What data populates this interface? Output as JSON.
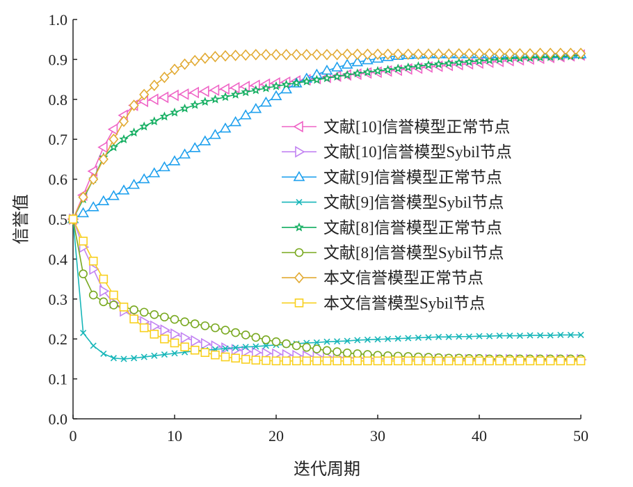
{
  "chart_data": {
    "type": "line",
    "title": "",
    "xlabel": "迭代周期",
    "ylabel": "信誉值",
    "xlim": [
      0,
      50
    ],
    "ylim": [
      0,
      1.0
    ],
    "xticks": [
      "0",
      "10",
      "20",
      "30",
      "40",
      "50"
    ],
    "yticks": [
      "0.0",
      "0.1",
      "0.2",
      "0.3",
      "0.4",
      "0.5",
      "0.6",
      "0.7",
      "0.8",
      "0.9",
      "1.0"
    ],
    "legend_position": "center-right",
    "grid": false,
    "series": [
      {
        "name": "文献[10]信誉模型正常节点",
        "color": "#ef64c6",
        "marker": "triangle-left",
        "values": [
          0.5,
          0.56,
          0.62,
          0.68,
          0.725,
          0.76,
          0.785,
          0.795,
          0.8,
          0.805,
          0.81,
          0.813,
          0.817,
          0.82,
          0.823,
          0.826,
          0.829,
          0.832,
          0.835,
          0.838,
          0.841,
          0.843,
          0.846,
          0.849,
          0.852,
          0.855,
          0.858,
          0.861,
          0.863,
          0.866,
          0.868,
          0.871,
          0.873,
          0.876,
          0.878,
          0.881,
          0.883,
          0.885,
          0.887,
          0.889,
          0.891,
          0.893,
          0.895,
          0.897,
          0.899,
          0.901,
          0.903,
          0.905,
          0.907,
          0.909,
          0.911
        ]
      },
      {
        "name": "文献[10]信誉模型Sybil节点",
        "color": "#c283f2",
        "marker": "triangle-right",
        "values": [
          0.5,
          0.43,
          0.375,
          0.32,
          0.29,
          0.27,
          0.255,
          0.243,
          0.232,
          0.222,
          0.212,
          0.203,
          0.195,
          0.188,
          0.182,
          0.177,
          0.173,
          0.169,
          0.166,
          0.164,
          0.162,
          0.16,
          0.158,
          0.157,
          0.156,
          0.155,
          0.154,
          0.153,
          0.152,
          0.151,
          0.15,
          0.15,
          0.15,
          0.149,
          0.149,
          0.149,
          0.149,
          0.148,
          0.148,
          0.148,
          0.148,
          0.148,
          0.148,
          0.148,
          0.148,
          0.148,
          0.148,
          0.148,
          0.148,
          0.148,
          0.148
        ]
      },
      {
        "name": "文献[9]信誉模型正常节点",
        "color": "#1ea0ee",
        "marker": "triangle-up",
        "values": [
          0.5,
          0.515,
          0.53,
          0.545,
          0.558,
          0.572,
          0.586,
          0.6,
          0.615,
          0.63,
          0.645,
          0.662,
          0.678,
          0.695,
          0.711,
          0.727,
          0.743,
          0.76,
          0.776,
          0.792,
          0.808,
          0.825,
          0.84,
          0.852,
          0.862,
          0.872,
          0.88,
          0.887,
          0.893,
          0.898,
          0.902,
          0.906,
          0.909,
          0.911,
          0.912,
          0.913,
          0.913,
          0.913,
          0.913,
          0.913,
          0.913,
          0.913,
          0.913,
          0.913,
          0.913,
          0.913,
          0.913,
          0.913,
          0.913,
          0.913,
          0.913
        ]
      },
      {
        "name": "文献[9]信誉模型Sybil节点",
        "color": "#17b6b9",
        "marker": "x",
        "values": [
          0.5,
          0.215,
          0.183,
          0.163,
          0.152,
          0.15,
          0.152,
          0.155,
          0.158,
          0.161,
          0.164,
          0.167,
          0.17,
          0.172,
          0.174,
          0.176,
          0.178,
          0.18,
          0.181,
          0.183,
          0.185,
          0.186,
          0.188,
          0.19,
          0.191,
          0.193,
          0.194,
          0.195,
          0.197,
          0.198,
          0.199,
          0.2,
          0.201,
          0.202,
          0.203,
          0.204,
          0.205,
          0.205,
          0.206,
          0.206,
          0.207,
          0.207,
          0.208,
          0.208,
          0.208,
          0.209,
          0.209,
          0.209,
          0.21,
          0.21,
          0.21
        ]
      },
      {
        "name": "文献[8]信誉模型正常节点",
        "color": "#11ad5f",
        "marker": "star",
        "values": [
          0.5,
          0.55,
          0.6,
          0.655,
          0.68,
          0.7,
          0.717,
          0.732,
          0.745,
          0.757,
          0.767,
          0.777,
          0.786,
          0.794,
          0.8,
          0.806,
          0.812,
          0.818,
          0.823,
          0.828,
          0.833,
          0.837,
          0.841,
          0.845,
          0.849,
          0.853,
          0.857,
          0.861,
          0.865,
          0.868,
          0.871,
          0.874,
          0.877,
          0.88,
          0.883,
          0.886,
          0.888,
          0.89,
          0.892,
          0.894,
          0.896,
          0.898,
          0.9,
          0.902,
          0.903,
          0.904,
          0.905,
          0.906,
          0.907,
          0.908,
          0.91
        ]
      },
      {
        "name": "文献[8]信誉模型Sybil节点",
        "color": "#78a81f",
        "marker": "circle",
        "values": [
          0.5,
          0.363,
          0.31,
          0.293,
          0.285,
          0.28,
          0.273,
          0.267,
          0.261,
          0.255,
          0.249,
          0.243,
          0.238,
          0.233,
          0.228,
          0.222,
          0.216,
          0.21,
          0.204,
          0.198,
          0.193,
          0.188,
          0.183,
          0.179,
          0.175,
          0.171,
          0.168,
          0.165,
          0.163,
          0.161,
          0.159,
          0.158,
          0.157,
          0.156,
          0.155,
          0.154,
          0.153,
          0.152,
          0.152,
          0.151,
          0.151,
          0.15,
          0.15,
          0.15,
          0.15,
          0.15,
          0.15,
          0.15,
          0.15,
          0.15,
          0.15
        ]
      },
      {
        "name": "本文信誉模型正常节点",
        "color": "#e2aa32",
        "marker": "diamond",
        "values": [
          0.5,
          0.555,
          0.6,
          0.65,
          0.7,
          0.745,
          0.785,
          0.812,
          0.835,
          0.855,
          0.875,
          0.888,
          0.897,
          0.903,
          0.907,
          0.909,
          0.91,
          0.911,
          0.912,
          0.912,
          0.912,
          0.912,
          0.912,
          0.912,
          0.912,
          0.912,
          0.912,
          0.913,
          0.913,
          0.913,
          0.913,
          0.913,
          0.913,
          0.913,
          0.913,
          0.913,
          0.913,
          0.913,
          0.914,
          0.914,
          0.914,
          0.914,
          0.914,
          0.914,
          0.914,
          0.914,
          0.915,
          0.915,
          0.915,
          0.915,
          0.915
        ]
      },
      {
        "name": "本文信誉模型Sybil节点",
        "color": "#f8d01e",
        "marker": "square",
        "values": [
          0.5,
          0.445,
          0.395,
          0.35,
          0.31,
          0.28,
          0.25,
          0.228,
          0.212,
          0.2,
          0.19,
          0.18,
          0.172,
          0.166,
          0.16,
          0.155,
          0.152,
          0.149,
          0.147,
          0.146,
          0.145,
          0.145,
          0.145,
          0.145,
          0.145,
          0.145,
          0.145,
          0.145,
          0.145,
          0.145,
          0.145,
          0.145,
          0.145,
          0.145,
          0.145,
          0.145,
          0.145,
          0.145,
          0.145,
          0.145,
          0.145,
          0.145,
          0.145,
          0.145,
          0.145,
          0.145,
          0.145,
          0.145,
          0.145,
          0.145,
          0.145
        ]
      }
    ]
  }
}
